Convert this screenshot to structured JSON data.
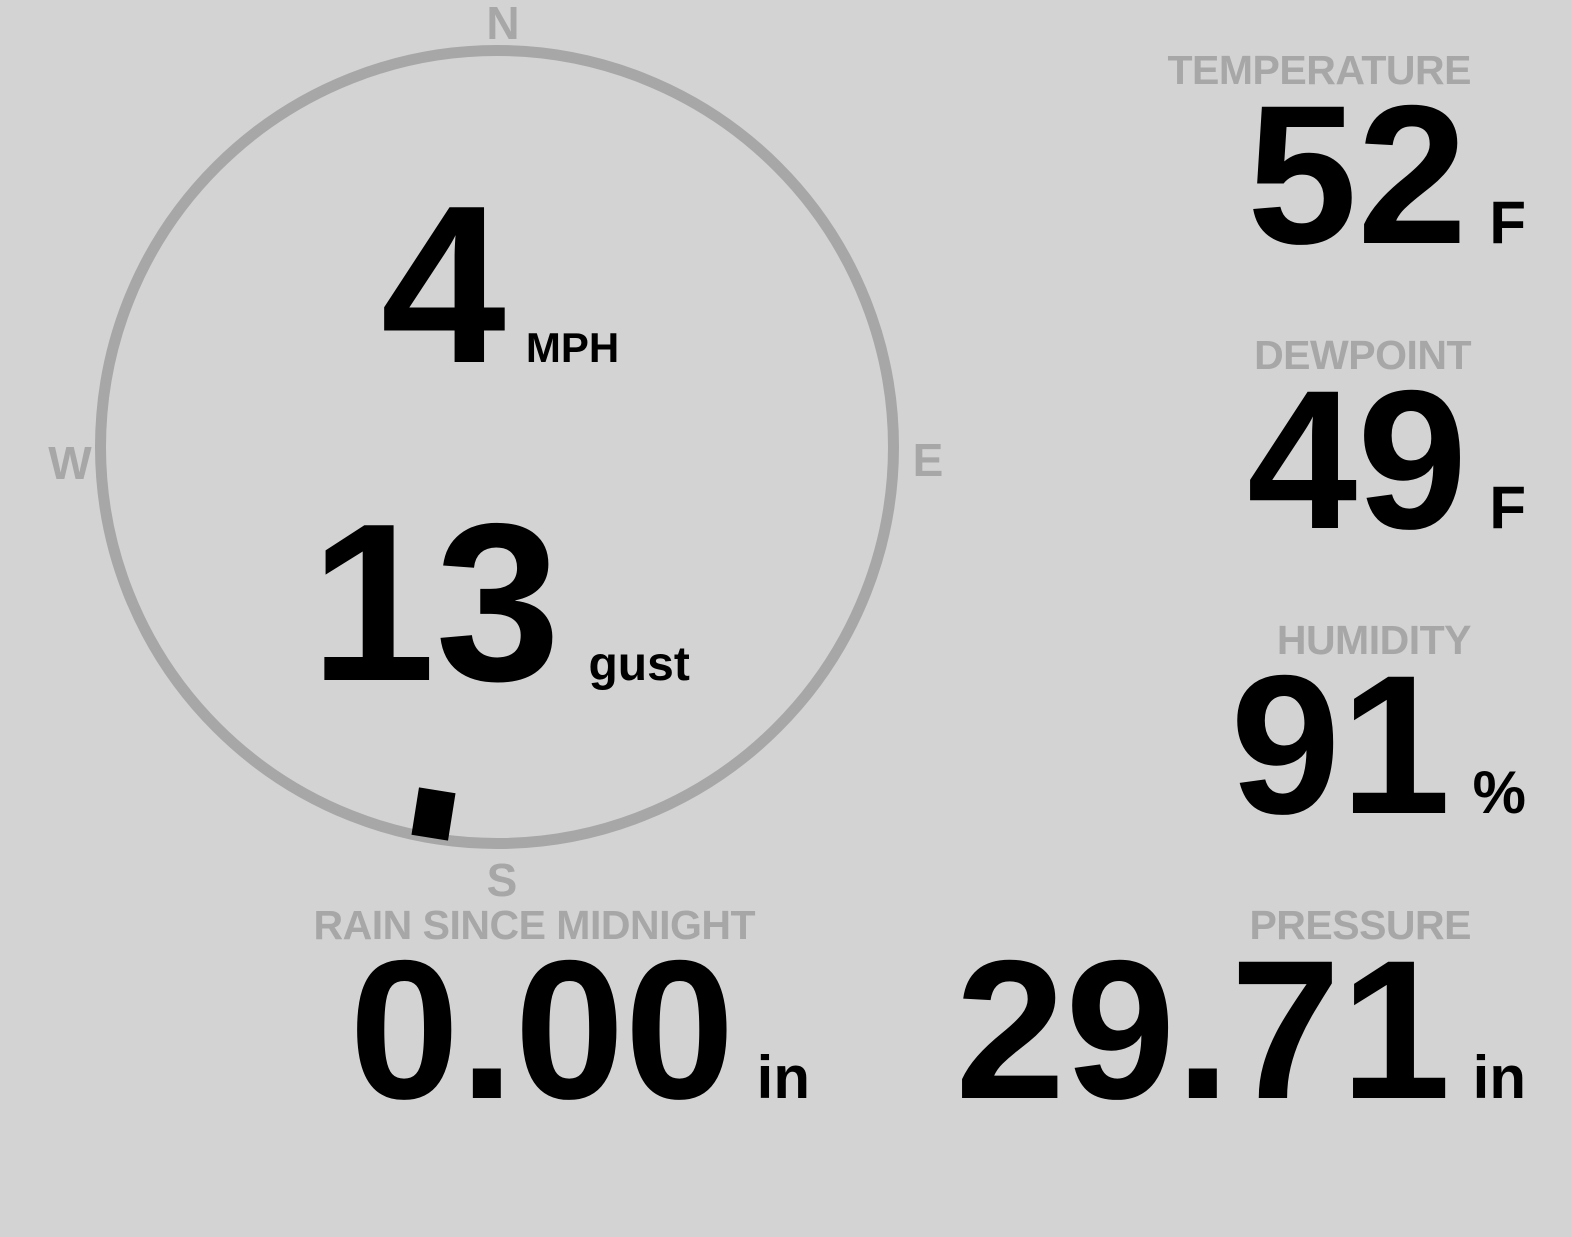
{
  "colors": {
    "background": "#d3d3d3",
    "muted_gray": "#a7a7a7",
    "value_black": "#000000"
  },
  "wind": {
    "speed_value": "4",
    "speed_unit": "MPH",
    "gust_value": "13",
    "gust_unit": "gust",
    "direction_degrees": 190,
    "compass": {
      "n": "N",
      "e": "E",
      "s": "S",
      "w": "W"
    }
  },
  "temperature": {
    "label": "TEMPERATURE",
    "value": "52",
    "unit": "F"
  },
  "dewpoint": {
    "label": "DEWPOINT",
    "value": "49",
    "unit": "F"
  },
  "humidity": {
    "label": "HUMIDITY",
    "value": "91",
    "unit": "%"
  },
  "pressure": {
    "label": "PRESSURE",
    "value": "29.71",
    "unit": "in"
  },
  "rain_since_midnight": {
    "label": "RAIN SINCE MIDNIGHT",
    "value": "0.00",
    "unit": "in"
  }
}
